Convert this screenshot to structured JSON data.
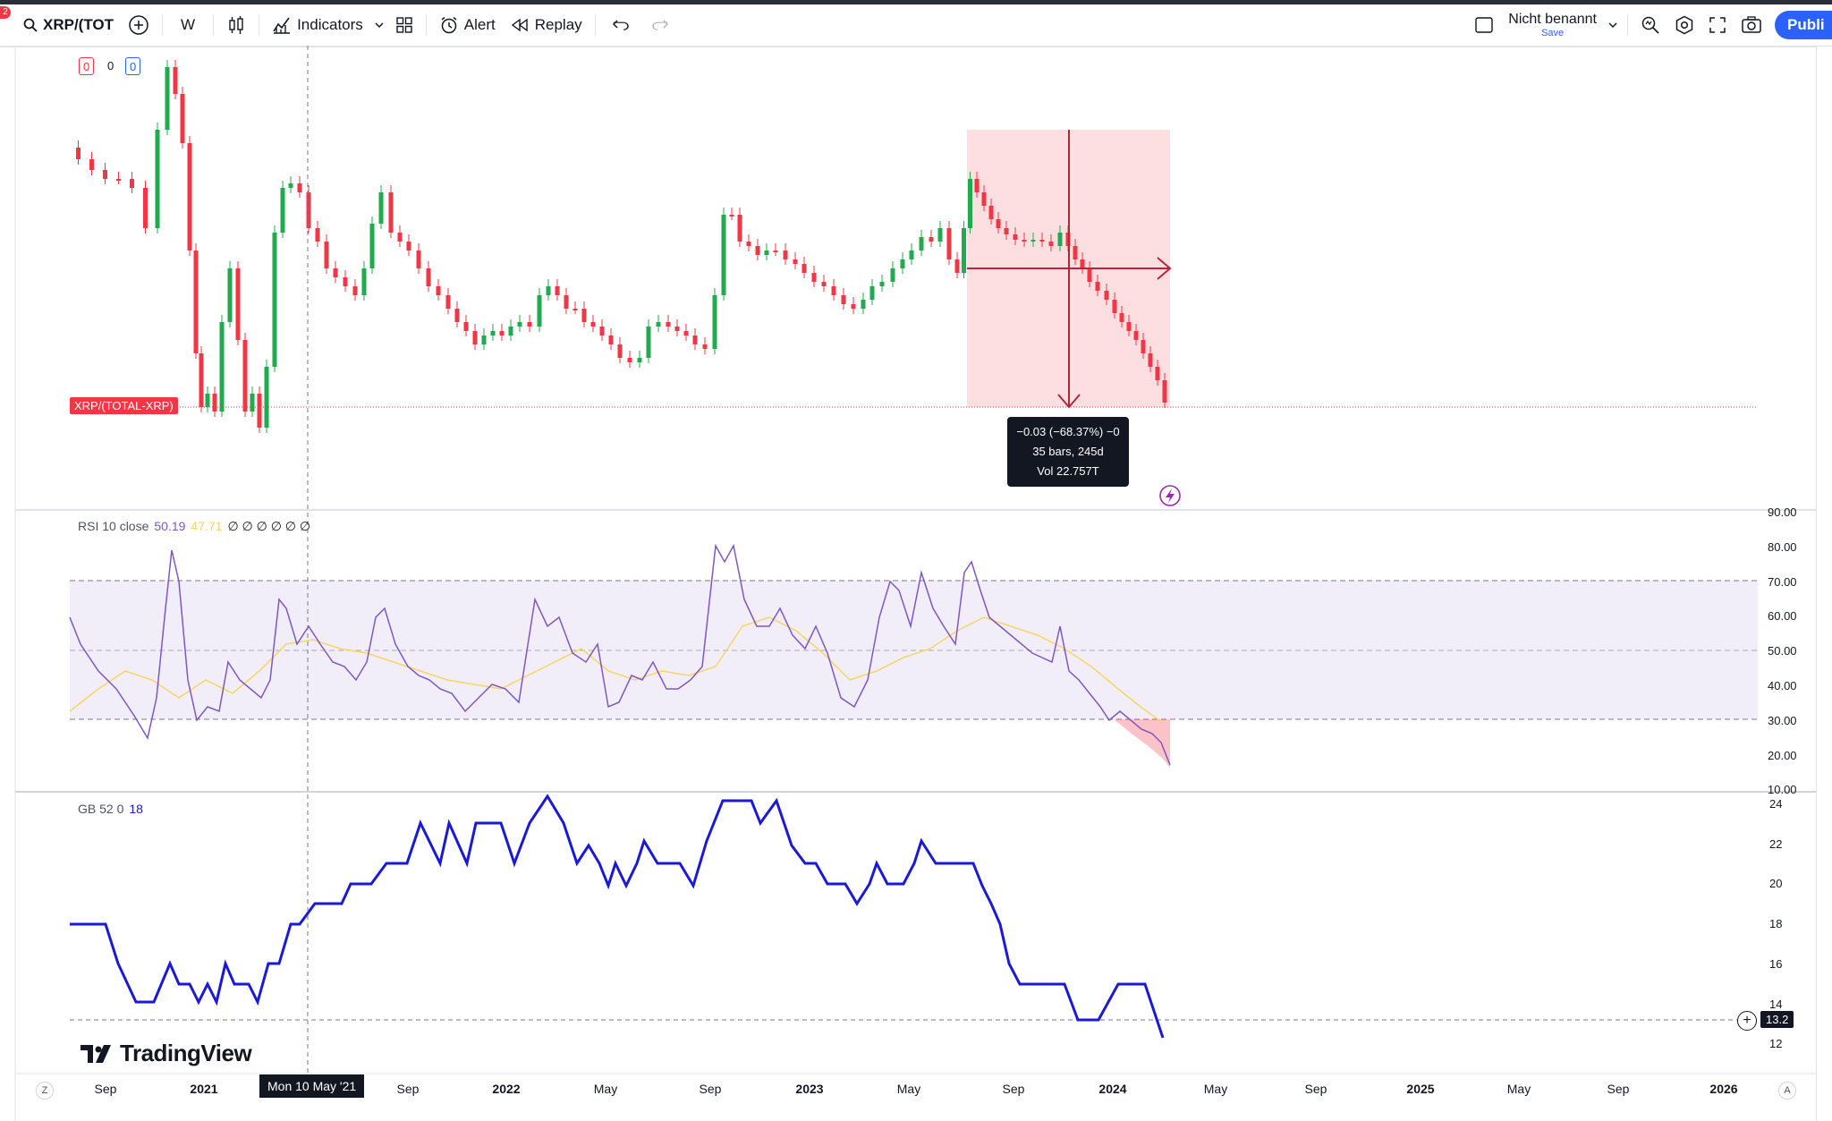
{
  "toolbar": {
    "notification_count": "2",
    "symbol": "XRP/(TOT",
    "interval": "W",
    "indicators_label": "Indicators",
    "alert_label": "Alert",
    "replay_label": "Replay",
    "layout_name": "Nicht benannt",
    "save_label": "Save",
    "publish_label": "Publi"
  },
  "ohlc_legend": {
    "v1": "0",
    "v2": "0",
    "v3": "0"
  },
  "main_chart": {
    "price_label": "XRP/(TOTAL-XRP)",
    "measure": {
      "line1": "−0.03 (−68.37%) −0",
      "line2": "35 bars, 245d",
      "line3": "Vol 22.757T"
    }
  },
  "rsi": {
    "name": "RSI 10 close",
    "value1": "50.19",
    "value2": "47.71",
    "extras": "∅ ∅ ∅ ∅ ∅ ∅",
    "y_labels": [
      "90.00",
      "80.00",
      "70.00",
      "60.00",
      "50.00",
      "40.00",
      "30.00",
      "20.00",
      "10.00"
    ]
  },
  "gb": {
    "name": "GB 52 0",
    "value": "18",
    "current_value": "13.2",
    "y_labels": [
      "24",
      "22",
      "20",
      "18",
      "16",
      "14",
      "12"
    ]
  },
  "x_axis": {
    "labels": [
      "Sep",
      "2021",
      "Sep",
      "2022",
      "May",
      "Sep",
      "2023",
      "May",
      "Sep",
      "2024",
      "May",
      "Sep",
      "2025",
      "May",
      "Sep",
      "2026"
    ],
    "crosshair_date": "Mon 10 May '21"
  },
  "branding": {
    "logo_text": "TradingView"
  },
  "colors": {
    "up": "#26a69a",
    "up_candle": "#22ab4e",
    "down": "#f23645",
    "rsi": "#7e57c2",
    "rsi_ma": "#f5d665",
    "gb": "#1a1ad6",
    "accent": "#2962ff"
  }
}
